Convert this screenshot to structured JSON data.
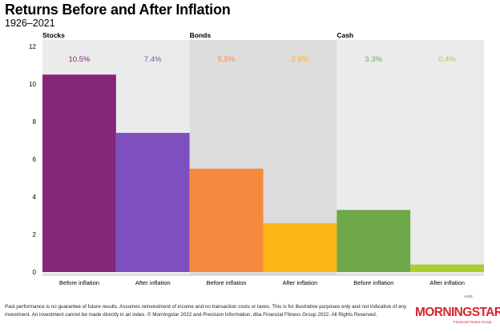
{
  "title": "Returns Before and After Inflation",
  "subtitle": "1926–2021",
  "footnote": "Past performance is no guarantee of future results. Assumes reinvestment of income and no transaction costs or taxes. This is for illustrative purposes only and not indicative of any investment. An investment cannot be made directly in an index. © Morningstar 2022 and Precision Information, dba Financial Fitness Group 2022. All Rights Reserved.",
  "code": "A040",
  "logo": {
    "word": "MORNINGSTAR",
    "sub": "Financial Fitness Group"
  },
  "chart_data": {
    "type": "bar",
    "ylim": [
      0,
      12
    ],
    "yticks": [
      0,
      2,
      4,
      6,
      8,
      10,
      12
    ],
    "groups": [
      {
        "name": "Stocks",
        "shaded": false,
        "bars": [
          {
            "label": "Before inflation",
            "value": 10.5,
            "display": "10.5%",
            "color": "#85267a",
            "label_color": "#85267a"
          },
          {
            "label": "After inflation",
            "value": 7.4,
            "display": "7.4%",
            "color": "#7e4fbf",
            "label_color": "#7e4fbf"
          }
        ]
      },
      {
        "name": "Bonds",
        "shaded": true,
        "bars": [
          {
            "label": "Before inflation",
            "value": 5.5,
            "display": "5.5%",
            "color": "#f58a3e",
            "label_color": "#f58a3e"
          },
          {
            "label": "After inflation",
            "value": 2.6,
            "display": "2.6%",
            "color": "#fbb515",
            "label_color": "#fbb515"
          }
        ]
      },
      {
        "name": "Cash",
        "shaded": false,
        "bars": [
          {
            "label": "Before inflation",
            "value": 3.3,
            "display": "3.3%",
            "color": "#6fa84a",
            "label_color": "#6fa84a"
          },
          {
            "label": "After inflation",
            "value": 0.4,
            "display": "0.4%",
            "color": "#a6d12e",
            "label_color": "#a6d12e"
          }
        ]
      }
    ],
    "colors": {
      "background": "#ebebeb",
      "shaded_band": "#dcdcdc",
      "axis": "#999999"
    }
  }
}
